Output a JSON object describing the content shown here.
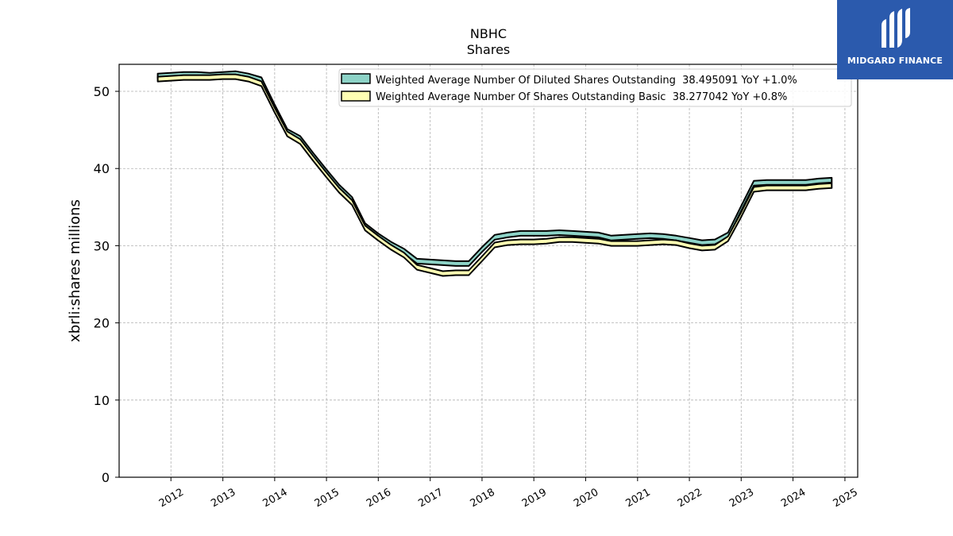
{
  "logo": {
    "text": "MIDGARD FINANCE",
    "color": "#2b5aad"
  },
  "chart_data": {
    "type": "area",
    "title": "NBHC",
    "subtitle": "Shares",
    "xlabel": "",
    "ylabel": "xbrli:shares millions",
    "xlim": [
      "2011-01-01",
      "2025-04-01"
    ],
    "ylim": [
      0,
      53.5
    ],
    "yticks": [
      0,
      10,
      20,
      30,
      40,
      50
    ],
    "xticks": [
      "2012",
      "2013",
      "2014",
      "2015",
      "2016",
      "2017",
      "2018",
      "2019",
      "2020",
      "2021",
      "2022",
      "2023",
      "2024",
      "2025"
    ],
    "grid": true,
    "legend_position": "top-right",
    "series": [
      {
        "name": "Weighted Average Number Of Diluted Shares Outstanding  38.495091 YoY +1.0%",
        "color": "#8dd3c7",
        "x": [
          "2011-09-30",
          "2011-12-31",
          "2012-03-31",
          "2012-06-30",
          "2012-09-30",
          "2012-12-31",
          "2013-03-31",
          "2013-06-30",
          "2013-09-30",
          "2013-12-31",
          "2014-03-31",
          "2014-06-30",
          "2014-09-30",
          "2014-12-31",
          "2015-03-31",
          "2015-06-30",
          "2015-09-30",
          "2015-12-31",
          "2016-03-31",
          "2016-06-30",
          "2016-09-30",
          "2016-12-31",
          "2017-03-31",
          "2017-06-30",
          "2017-09-30",
          "2017-12-31",
          "2018-03-31",
          "2018-06-30",
          "2018-09-30",
          "2018-12-31",
          "2019-03-31",
          "2019-06-30",
          "2019-09-30",
          "2019-12-31",
          "2020-03-31",
          "2020-06-30",
          "2020-09-30",
          "2020-12-31",
          "2021-03-31",
          "2021-06-30",
          "2021-09-30",
          "2021-12-31",
          "2022-03-31",
          "2022-06-30",
          "2022-09-30",
          "2022-12-31",
          "2023-03-31",
          "2023-06-30",
          "2023-09-30",
          "2023-12-31",
          "2024-03-31",
          "2024-06-30",
          "2024-09-30"
        ],
        "values": [
          52.3,
          52.4,
          52.5,
          52.5,
          52.4,
          52.5,
          52.6,
          52.3,
          51.8,
          48.3,
          45.1,
          44.2,
          42.0,
          39.9,
          37.9,
          36.3,
          32.9,
          31.6,
          30.5,
          29.6,
          28.3,
          28.2,
          28.1,
          28.0,
          28.0,
          29.8,
          31.4,
          31.7,
          31.9,
          31.9,
          31.9,
          32.0,
          31.9,
          31.8,
          31.7,
          31.3,
          31.4,
          31.5,
          31.6,
          31.5,
          31.3,
          31.0,
          30.7,
          30.8,
          31.7,
          35.1,
          38.4,
          38.5,
          38.5,
          38.5,
          38.5,
          38.7,
          38.8
        ]
      },
      {
        "name": "Weighted Average Number Of Shares Outstanding Basic  38.277042 YoY +0.8%",
        "color": "#ffffb3",
        "x": [
          "2011-09-30",
          "2011-12-31",
          "2012-03-31",
          "2012-06-30",
          "2012-09-30",
          "2012-12-31",
          "2013-03-31",
          "2013-06-30",
          "2013-09-30",
          "2013-12-31",
          "2014-03-31",
          "2014-06-30",
          "2014-09-30",
          "2014-12-31",
          "2015-03-31",
          "2015-06-30",
          "2015-09-30",
          "2015-12-31",
          "2016-03-31",
          "2016-06-30",
          "2016-09-30",
          "2016-12-31",
          "2017-03-31",
          "2017-06-30",
          "2017-09-30",
          "2017-12-31",
          "2018-03-31",
          "2018-06-30",
          "2018-09-30",
          "2018-12-31",
          "2019-03-31",
          "2019-06-30",
          "2019-09-30",
          "2019-12-31",
          "2020-03-31",
          "2020-06-30",
          "2020-09-30",
          "2020-12-31",
          "2021-03-31",
          "2021-06-30",
          "2021-09-30",
          "2021-12-31",
          "2022-03-31",
          "2022-06-30",
          "2022-09-30",
          "2022-12-31",
          "2023-03-31",
          "2023-06-30",
          "2023-09-30",
          "2023-12-31",
          "2024-03-31",
          "2024-06-30",
          "2024-09-30"
        ],
        "values": [
          51.9,
          52.0,
          52.1,
          52.1,
          52.1,
          52.2,
          52.2,
          51.9,
          51.3,
          47.9,
          44.8,
          43.8,
          41.6,
          39.5,
          37.5,
          35.9,
          32.6,
          31.3,
          30.1,
          29.1,
          27.5,
          27.1,
          26.7,
          26.8,
          26.8,
          28.6,
          30.4,
          30.7,
          30.8,
          30.8,
          30.9,
          31.1,
          31.1,
          31.0,
          30.9,
          30.6,
          30.6,
          30.6,
          30.7,
          30.8,
          30.7,
          30.3,
          30.0,
          30.1,
          31.2,
          34.3,
          37.6,
          37.8,
          37.8,
          37.8,
          37.8,
          38.0,
          38.1
        ]
      }
    ]
  }
}
